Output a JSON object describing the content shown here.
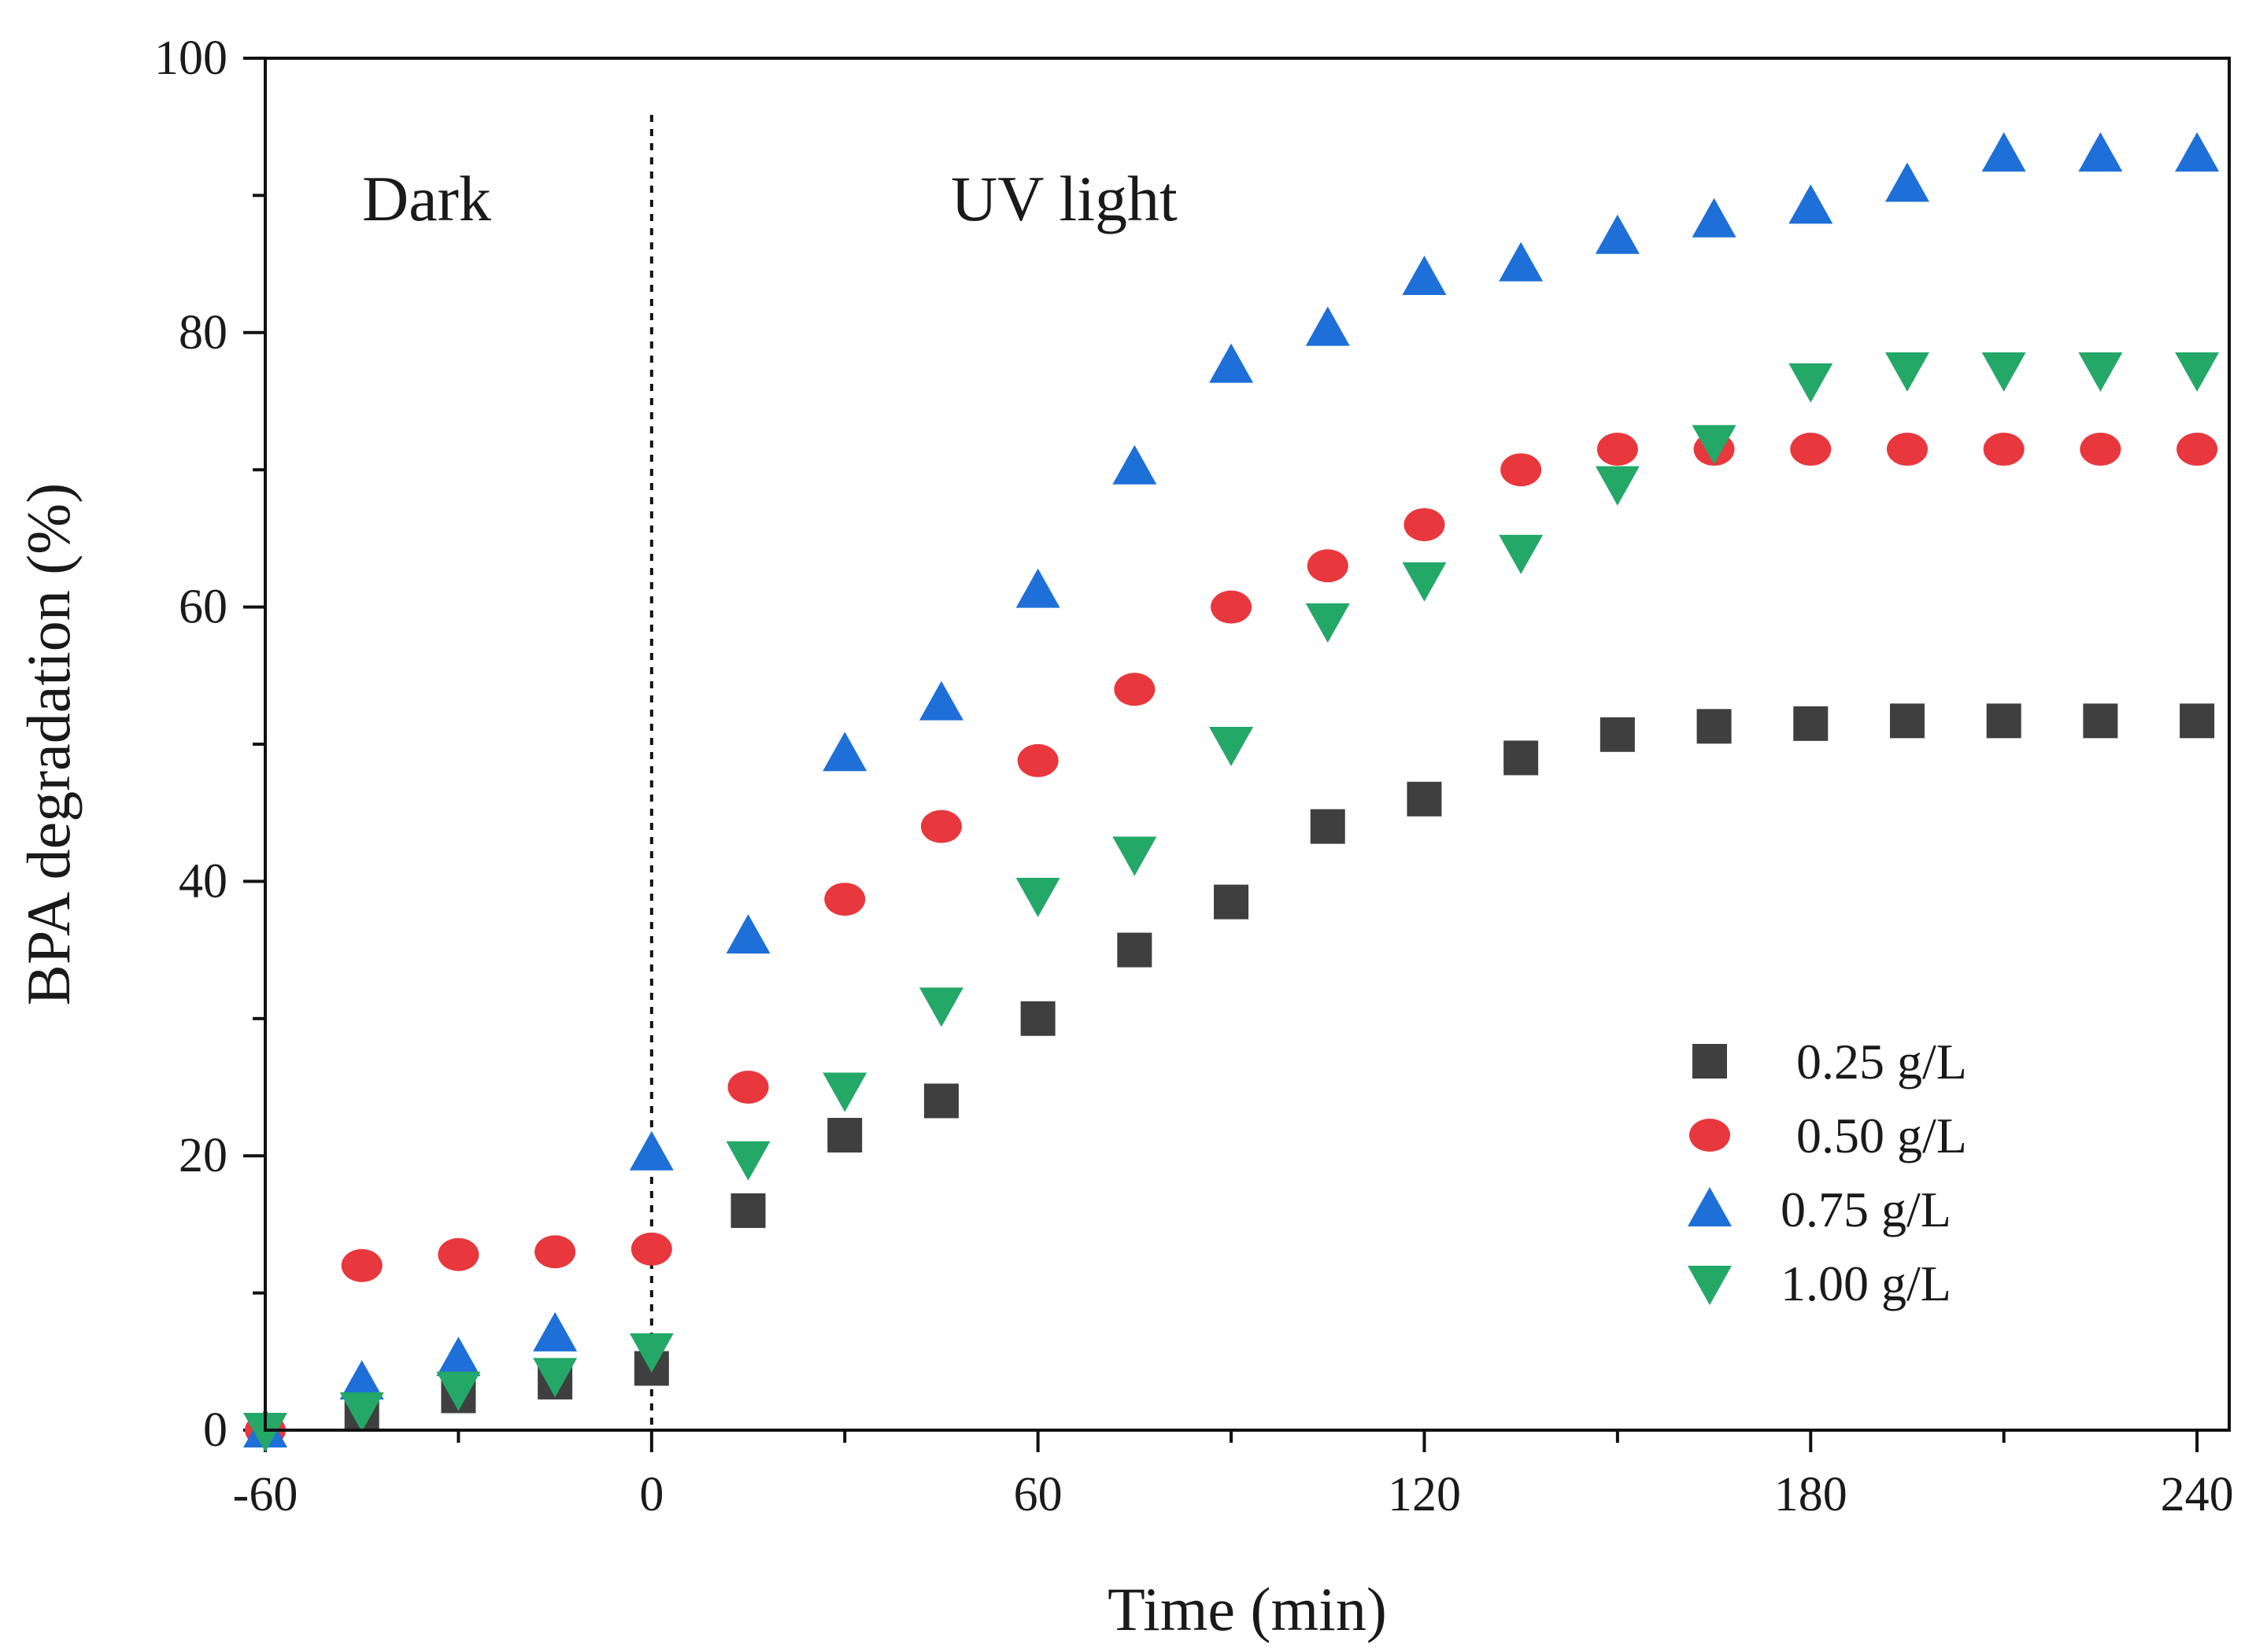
{
  "chart_data": {
    "type": "scatter",
    "title": "",
    "xlabel": "Time (min)",
    "ylabel": "BPA degradation (%)",
    "xlim": [
      -60,
      245
    ],
    "ylim": [
      0,
      100
    ],
    "xticks": [
      -60,
      0,
      60,
      120,
      180,
      240
    ],
    "yticks": [
      0,
      20,
      40,
      60,
      80,
      100
    ],
    "xtick_labels": [
      "-60",
      "0",
      "60",
      "120",
      "180",
      "240"
    ],
    "ytick_labels": [
      "0",
      "20",
      "40",
      "60",
      "80",
      "100"
    ],
    "x": [
      -60,
      -45,
      -30,
      -15,
      0,
      15,
      30,
      45,
      60,
      75,
      90,
      105,
      120,
      135,
      150,
      165,
      180,
      195,
      210,
      225,
      240
    ],
    "annotations": {
      "dark": "Dark",
      "uv": "UV light",
      "divider_x": 0
    },
    "legend_position": "bottom-right",
    "series": [
      {
        "name": "0.25 g/L",
        "marker": "square",
        "color": "#3f3f3f",
        "values": [
          0,
          1.2,
          2.5,
          3.5,
          4.5,
          16,
          21.5,
          24,
          30,
          35,
          38.5,
          44,
          46,
          49,
          50.7,
          51.3,
          51.5,
          51.7,
          51.7,
          51.7,
          51.7
        ]
      },
      {
        "name": "0.50 g/L",
        "marker": "circle",
        "color": "#e8373d",
        "values": [
          0,
          12,
          12.8,
          13,
          13.2,
          25,
          38.7,
          44,
          48.8,
          54,
          60,
          63,
          66,
          70,
          71.5,
          71.5,
          71.5,
          71.5,
          71.5,
          71.5,
          71.5
        ]
      },
      {
        "name": "0.75 g/L",
        "marker": "triangle-up",
        "color": "#1e6fd8",
        "values": [
          0,
          3.5,
          5.2,
          7,
          20.2,
          36,
          49.3,
          53,
          61.2,
          70.2,
          77.6,
          80.3,
          84,
          85,
          87,
          88.2,
          89.2,
          90.8,
          93,
          93,
          93
        ]
      },
      {
        "name": "1.00 g/L",
        "marker": "triangle-down",
        "color": "#23a868",
        "values": [
          0,
          1.5,
          3,
          4,
          5.8,
          19.8,
          24.8,
          31,
          39,
          42,
          50,
          59,
          62,
          64,
          69,
          72,
          76.5,
          77.3,
          77.3,
          77.3,
          77.3
        ]
      }
    ]
  }
}
